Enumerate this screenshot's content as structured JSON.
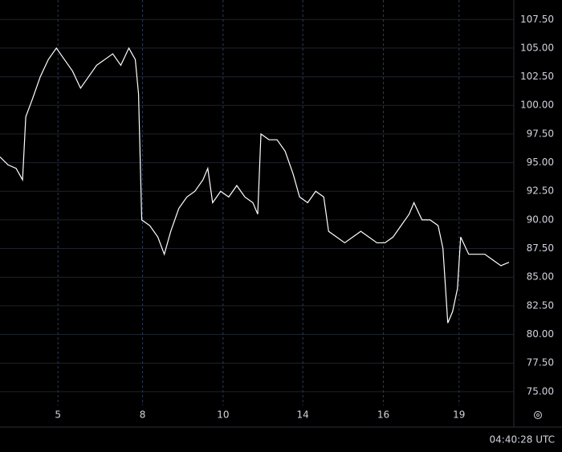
{
  "chart_data": {
    "type": "line",
    "color": "#ffffff",
    "x": [
      0,
      0.2,
      0.4,
      0.56,
      0.64,
      0.8,
      1.0,
      1.2,
      1.4,
      1.6,
      1.8,
      2.0,
      2.2,
      2.4,
      2.6,
      2.8,
      3.0,
      3.2,
      3.36,
      3.44,
      3.52,
      3.72,
      3.92,
      4.08,
      4.24,
      4.44,
      4.64,
      4.84,
      5.04,
      5.16,
      5.28,
      5.48,
      5.68,
      5.88,
      6.08,
      6.28,
      6.4,
      6.48,
      6.68,
      6.88,
      7.08,
      7.28,
      7.44,
      7.64,
      7.84,
      8.04,
      8.16,
      8.36,
      8.56,
      8.76,
      8.96,
      9.16,
      9.36,
      9.56,
      9.76,
      9.96,
      10.16,
      10.28,
      10.48,
      10.68,
      10.88,
      11.0,
      11.12,
      11.24,
      11.36,
      11.44,
      11.64,
      11.84,
      12.04,
      12.24,
      12.44,
      12.64
    ],
    "values": [
      95.5,
      94.8,
      94.5,
      93.5,
      99,
      100.5,
      102.5,
      104,
      105,
      104,
      103,
      101.5,
      102.5,
      103.5,
      104,
      104.5,
      103.5,
      105,
      104,
      101,
      90,
      89.5,
      88.5,
      87,
      89,
      91,
      92,
      92.5,
      93.5,
      94.5,
      91.5,
      92.5,
      92,
      93,
      92,
      91.5,
      90.5,
      97.5,
      97,
      97,
      96,
      94,
      92,
      91.5,
      92.5,
      92,
      89,
      88.5,
      88,
      88.5,
      89,
      88.5,
      88,
      88,
      88.5,
      89.5,
      90.5,
      91.5,
      90,
      90,
      89.5,
      87.5,
      81,
      82,
      84,
      88.5,
      87,
      87,
      87,
      86.5,
      86,
      86.3
    ],
    "xlim": [
      0,
      12.76
    ],
    "xticks": [
      {
        "value": 1.44,
        "label": "5"
      },
      {
        "value": 3.54,
        "label": "8"
      },
      {
        "value": 5.54,
        "label": "10"
      },
      {
        "value": 7.52,
        "label": "14"
      },
      {
        "value": 9.52,
        "label": "16"
      },
      {
        "value": 11.4,
        "label": "19"
      }
    ],
    "ylim": [
      73.8,
      109.2
    ],
    "yticks": [
      {
        "value": 75,
        "label": "75.00"
      },
      {
        "value": 77.5,
        "label": "77.50"
      },
      {
        "value": 80,
        "label": "80.00"
      },
      {
        "value": 82.5,
        "label": "82.50"
      },
      {
        "value": 85,
        "label": "85.00"
      },
      {
        "value": 87.5,
        "label": "87.50"
      },
      {
        "value": 90,
        "label": "90.00"
      },
      {
        "value": 92.5,
        "label": "92.50"
      },
      {
        "value": 95,
        "label": "95.00"
      },
      {
        "value": 97.5,
        "label": "97.50"
      },
      {
        "value": 100,
        "label": "100.00"
      },
      {
        "value": 102.5,
        "label": "102.50"
      },
      {
        "value": 105,
        "label": "105.00"
      },
      {
        "value": 107.5,
        "label": "107.50"
      }
    ],
    "grid": true,
    "clock": "04:40:28 UTC"
  }
}
